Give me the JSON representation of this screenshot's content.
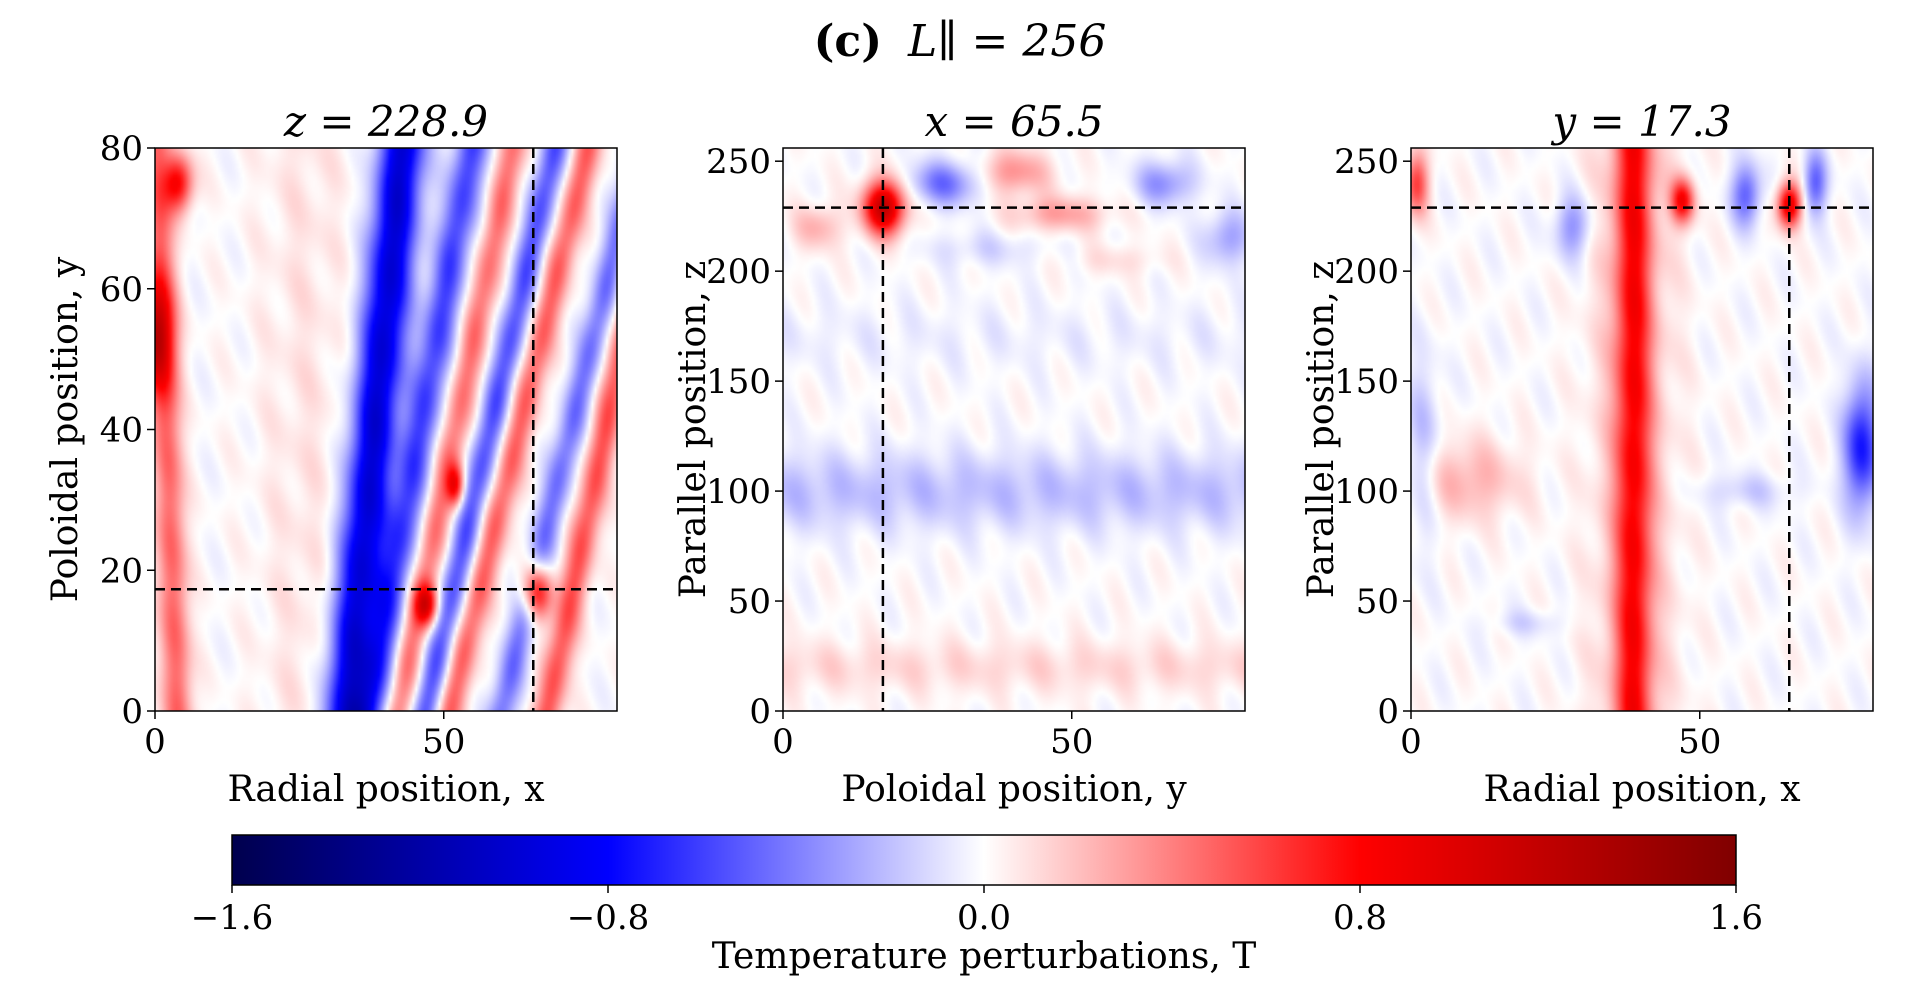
{
  "figure": {
    "label": "(c)",
    "title_math": "L∥ = 256"
  },
  "chart_data": [
    {
      "type": "heatmap",
      "title": "z = 228.9",
      "xlabel": "Radial position, x",
      "ylabel": "Poloidal position, y",
      "xlim": [
        0,
        80
      ],
      "ylim": [
        0,
        80
      ],
      "xticks": [
        "0",
        "50"
      ],
      "yticks": [
        "0",
        "20",
        "40",
        "60",
        "80"
      ],
      "xtick_values": [
        0,
        50
      ],
      "ytick_values": [
        0,
        20,
        40,
        60,
        80
      ],
      "crosshair": {
        "x": 65.5,
        "y": 17.3
      },
      "features": [
        {
          "kind": "band",
          "x": 38,
          "width": 4,
          "slope": 0.12,
          "value": -1.0
        },
        {
          "kind": "band",
          "x": 46,
          "width": 3,
          "slope": 0.22,
          "value": -0.6
        },
        {
          "kind": "band",
          "x": 52,
          "width": 2.5,
          "slope": 0.25,
          "value": 0.45
        },
        {
          "kind": "band",
          "x": 58,
          "width": 2.5,
          "slope": 0.28,
          "value": -0.55
        },
        {
          "kind": "band",
          "x": 63,
          "width": 2.5,
          "slope": 0.3,
          "value": 0.5
        },
        {
          "kind": "band",
          "x": 72,
          "width": 2.5,
          "slope": 0.3,
          "value": -0.45
        },
        {
          "kind": "band",
          "x": 78,
          "width": 2.5,
          "slope": 0.25,
          "value": 0.55
        },
        {
          "kind": "band",
          "x": 2,
          "width": 2.5,
          "slope": -0.05,
          "value": 0.5
        },
        {
          "kind": "band",
          "x": 26,
          "width": 8,
          "slope": 0.0,
          "value": 0.08
        },
        {
          "kind": "blob",
          "x": 0,
          "y": 53,
          "rx": 3,
          "ry": 8,
          "value": 0.9
        },
        {
          "kind": "blob",
          "x": 4,
          "y": 75,
          "rx": 2.5,
          "ry": 4,
          "value": 0.8
        },
        {
          "kind": "blob",
          "x": 66,
          "y": 17,
          "rx": 2.5,
          "ry": 4,
          "value": 1.0
        },
        {
          "kind": "blob",
          "x": 47,
          "y": 15,
          "rx": 2,
          "ry": 3,
          "value": 0.8
        },
        {
          "kind": "blob",
          "x": 52,
          "y": 32,
          "rx": 1.5,
          "ry": 3,
          "value": 0.7
        }
      ]
    },
    {
      "type": "heatmap",
      "title": "x = 65.5",
      "xlabel": "Poloidal position, y",
      "ylabel": "Parallel position, z",
      "xlim": [
        0,
        80
      ],
      "ylim": [
        0,
        256
      ],
      "xticks": [
        "0",
        "50"
      ],
      "yticks": [
        "0",
        "50",
        "100",
        "150",
        "200",
        "250"
      ],
      "xtick_values": [
        0,
        50
      ],
      "ytick_values": [
        0,
        50,
        100,
        150,
        200,
        250
      ],
      "crosshair": {
        "x": 17.3,
        "y": 228.9
      },
      "features": [
        {
          "kind": "hband",
          "y": 100,
          "height": 18,
          "value": -0.2
        },
        {
          "kind": "hband",
          "y": 20,
          "height": 12,
          "value": 0.12
        },
        {
          "kind": "hband",
          "y": 170,
          "height": 15,
          "value": -0.05
        },
        {
          "kind": "blob",
          "x": 17.5,
          "y": 229,
          "rx": 3.5,
          "ry": 12,
          "value": 1.2
        },
        {
          "kind": "blob",
          "x": 28,
          "y": 240,
          "rx": 6,
          "ry": 10,
          "value": -0.45
        },
        {
          "kind": "blob",
          "x": 40,
          "y": 245,
          "rx": 6,
          "ry": 10,
          "value": 0.35
        },
        {
          "kind": "blob",
          "x": 48,
          "y": 226,
          "rx": 8,
          "ry": 8,
          "value": 0.3
        },
        {
          "kind": "blob",
          "x": 66,
          "y": 240,
          "rx": 5,
          "ry": 10,
          "value": -0.35
        },
        {
          "kind": "blob",
          "x": 77,
          "y": 215,
          "rx": 4,
          "ry": 12,
          "value": -0.3
        },
        {
          "kind": "blob",
          "x": 6,
          "y": 220,
          "rx": 4,
          "ry": 10,
          "value": 0.25
        },
        {
          "kind": "blob",
          "x": 35,
          "y": 210,
          "rx": 10,
          "ry": 8,
          "value": -0.12
        },
        {
          "kind": "blob",
          "x": 58,
          "y": 205,
          "rx": 8,
          "ry": 7,
          "value": 0.1
        }
      ]
    },
    {
      "type": "heatmap",
      "title": "y = 17.3",
      "xlabel": "Radial position, x",
      "ylabel": "Parallel position, z",
      "xlim": [
        0,
        80
      ],
      "ylim": [
        0,
        256
      ],
      "xticks": [
        "0",
        "50"
      ],
      "yticks": [
        "0",
        "50",
        "100",
        "150",
        "200",
        "250"
      ],
      "xtick_values": [
        0,
        50
      ],
      "ytick_values": [
        0,
        50,
        100,
        150,
        200,
        250
      ],
      "crosshair": {
        "x": 65.5,
        "y": 228.9
      },
      "features": [
        {
          "kind": "vband",
          "x": 38.5,
          "width": 3,
          "value": 0.65
        },
        {
          "kind": "vband",
          "x": 38.5,
          "width": 7,
          "value": 0.2
        },
        {
          "kind": "blob",
          "x": 78,
          "y": 120,
          "rx": 3,
          "ry": 28,
          "value": -0.75
        },
        {
          "kind": "blob",
          "x": 10,
          "y": 105,
          "rx": 9,
          "ry": 18,
          "value": 0.25
        },
        {
          "kind": "blob",
          "x": 2,
          "y": 120,
          "rx": 3,
          "ry": 40,
          "value": -0.2
        },
        {
          "kind": "blob",
          "x": 65.5,
          "y": 230,
          "rx": 2,
          "ry": 10,
          "value": 1.0
        },
        {
          "kind": "blob",
          "x": 47,
          "y": 232,
          "rx": 2,
          "ry": 10,
          "value": 0.8
        },
        {
          "kind": "blob",
          "x": 1,
          "y": 240,
          "rx": 2,
          "ry": 14,
          "value": 0.6
        },
        {
          "kind": "blob",
          "x": 58,
          "y": 235,
          "rx": 2.5,
          "ry": 14,
          "value": -0.5
        },
        {
          "kind": "blob",
          "x": 70,
          "y": 240,
          "rx": 2,
          "ry": 14,
          "value": -0.5
        },
        {
          "kind": "blob",
          "x": 28,
          "y": 220,
          "rx": 3,
          "ry": 14,
          "value": -0.35
        },
        {
          "kind": "blob",
          "x": 58,
          "y": 100,
          "rx": 8,
          "ry": 8,
          "value": -0.15
        },
        {
          "kind": "blob",
          "x": 20,
          "y": 40,
          "rx": 6,
          "ry": 6,
          "value": -0.12
        }
      ]
    }
  ],
  "colorbar": {
    "label": "Temperature perturbations, T",
    "range": [
      -1.6,
      1.6
    ],
    "tick_values": [
      -1.6,
      -0.8,
      0.0,
      0.8,
      1.6
    ],
    "ticks": [
      "−1.6",
      "−0.8",
      "0.0",
      "0.8",
      "1.6"
    ],
    "colors": [
      "#00004d",
      "#0000ff",
      "#ffffff",
      "#ff0000",
      "#800000"
    ]
  }
}
